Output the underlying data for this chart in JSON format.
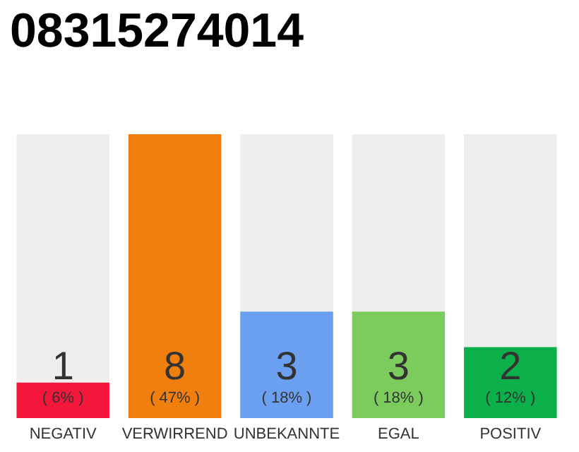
{
  "chart_data": {
    "type": "bar",
    "title": "08315274014",
    "categories": [
      "NEGATIV",
      "VERWIRREND",
      "UNBEKANNTE",
      "EGAL",
      "POSITIV"
    ],
    "values": [
      1,
      8,
      3,
      3,
      2
    ],
    "colors": [
      "#f5163b",
      "#f07f0e",
      "#6aa0ef",
      "#7ccc5d",
      "#0cb04a"
    ],
    "value_labels": [
      "1\n( 6% )",
      "8\n( 47% )",
      "3\n( 18% )",
      "3\n( 18% )",
      "2\n( 12% )"
    ],
    "ylim": [
      0,
      8
    ],
    "grid": false
  }
}
